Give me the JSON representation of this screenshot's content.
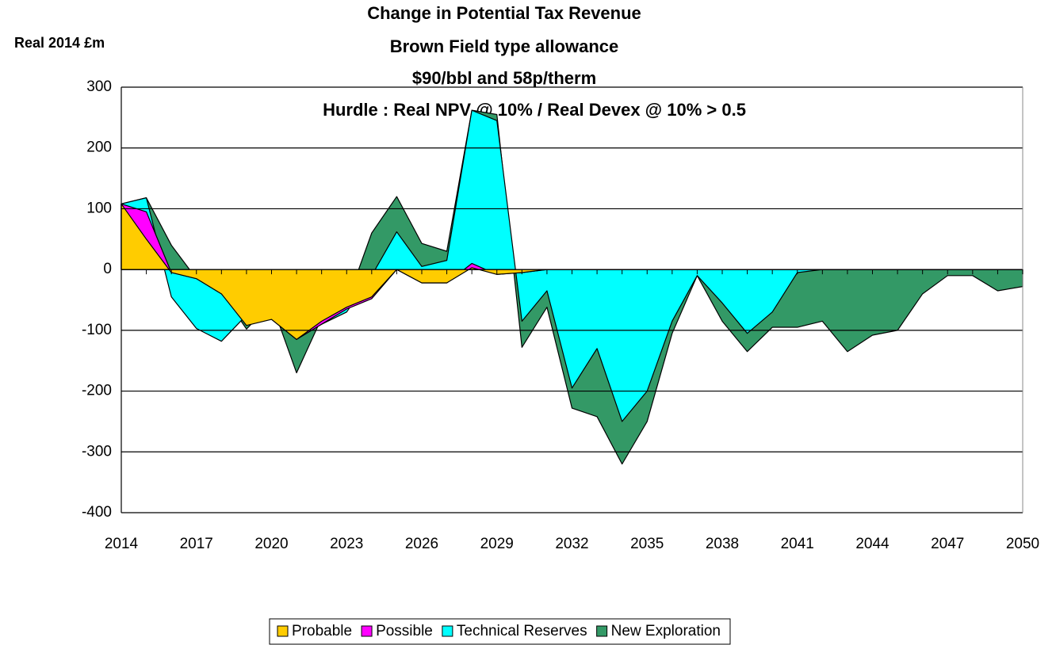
{
  "chart_data": {
    "type": "stacked_area",
    "title": [
      "Change in Potential Tax Revenue",
      "Brown Field type allowance",
      "$90/bbl and 58p/therm",
      "Hurdle : Real NPV @ 10% / Real Devex @ 10% > 0.5"
    ],
    "y_axis_label": "Real 2014 £m",
    "categories": [
      "2014",
      null,
      null,
      "2017",
      null,
      null,
      "2020",
      null,
      null,
      "2023",
      null,
      null,
      "2026",
      null,
      null,
      "2029",
      null,
      null,
      "2032",
      null,
      null,
      "2035",
      null,
      null,
      "2038",
      null,
      null,
      "2041",
      null,
      null,
      "2044",
      null,
      null,
      "2047",
      null,
      null,
      "2050"
    ],
    "series": [
      {
        "name": "Probable",
        "color": "#ffcc00",
        "values": [
          108,
          50,
          -5,
          -15,
          -40,
          -92,
          -82,
          -115,
          -85,
          -62,
          -45,
          0,
          -22,
          -22,
          3,
          -8,
          -5,
          0,
          0,
          0,
          0,
          0,
          0,
          0,
          0,
          0,
          0,
          0,
          0,
          0,
          0,
          0,
          0,
          0,
          0,
          0,
          0
        ]
      },
      {
        "name": "Possible",
        "color": "#ff00ff",
        "values": [
          0,
          45,
          0,
          0,
          0,
          7,
          0,
          0,
          -5,
          -3,
          -3,
          0,
          0,
          0,
          7,
          0,
          0,
          0,
          0,
          0,
          0,
          0,
          0,
          0,
          0,
          0,
          0,
          0,
          0,
          0,
          0,
          0,
          0,
          0,
          0,
          0,
          0
        ]
      },
      {
        "name": "Technical Reserves",
        "color": "#00ffff",
        "values": [
          0,
          23,
          -40,
          -82,
          -78,
          10,
          17,
          5,
          0,
          -5,
          38,
          62,
          27,
          37,
          252,
          253,
          -80,
          -35,
          -195,
          -130,
          -250,
          -200,
          -85,
          -10,
          -55,
          -105,
          -70,
          -5,
          0,
          0,
          0,
          0,
          0,
          0,
          0,
          0,
          0
        ]
      },
      {
        "name": "New Exploration",
        "color": "#339966",
        "values": [
          0,
          0,
          85,
          82,
          81,
          -23,
          10,
          -60,
          10,
          15,
          70,
          58,
          38,
          15,
          0,
          10,
          -43,
          -27,
          -33,
          -112,
          -70,
          -50,
          -20,
          0,
          -30,
          -30,
          -25,
          -90,
          -85,
          -135,
          -108,
          -100,
          -40,
          -10,
          -10,
          -35,
          -28
        ]
      }
    ],
    "ylim": [
      -400,
      300
    ],
    "yticks": [
      -400,
      -300,
      -200,
      -100,
      0,
      100,
      200,
      300
    ],
    "negative_tick_color": "#ff0000",
    "grid": true,
    "legend": "bottom"
  }
}
